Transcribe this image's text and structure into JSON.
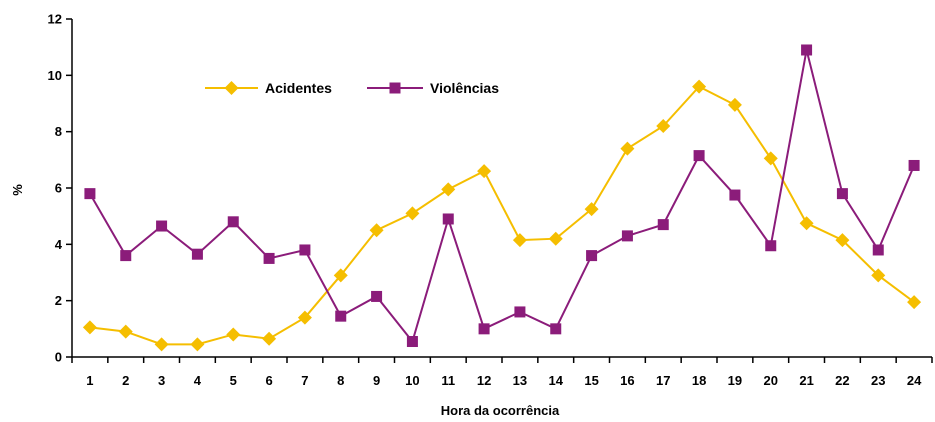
{
  "chart_data": {
    "type": "line",
    "title": "",
    "xlabel": "Hora da ocorrência",
    "ylabel": "%",
    "x": [
      1,
      2,
      3,
      4,
      5,
      6,
      7,
      8,
      9,
      10,
      11,
      12,
      13,
      14,
      15,
      16,
      17,
      18,
      19,
      20,
      21,
      22,
      23,
      24
    ],
    "ylim": [
      0,
      12
    ],
    "yticks": [
      0,
      2,
      4,
      6,
      8,
      10,
      12
    ],
    "grid": false,
    "legend_position": "top-left",
    "series": [
      {
        "name": "Acidentes",
        "color": "#F5BE00",
        "marker": "diamond",
        "values": [
          1.05,
          0.9,
          0.45,
          0.45,
          0.8,
          0.65,
          1.4,
          2.9,
          4.5,
          5.1,
          5.95,
          6.6,
          4.15,
          4.2,
          5.25,
          7.4,
          8.2,
          9.6,
          8.95,
          7.05,
          4.75,
          4.15,
          2.9,
          1.95
        ]
      },
      {
        "name": "Violências",
        "color": "#8B1C7A",
        "marker": "square",
        "values": [
          5.8,
          3.6,
          4.65,
          3.65,
          4.8,
          3.5,
          3.8,
          1.45,
          2.15,
          0.55,
          4.9,
          1.0,
          1.6,
          1.0,
          3.6,
          4.3,
          4.7,
          7.15,
          5.75,
          3.95,
          10.9,
          5.8,
          3.8,
          6.8
        ]
      }
    ]
  }
}
